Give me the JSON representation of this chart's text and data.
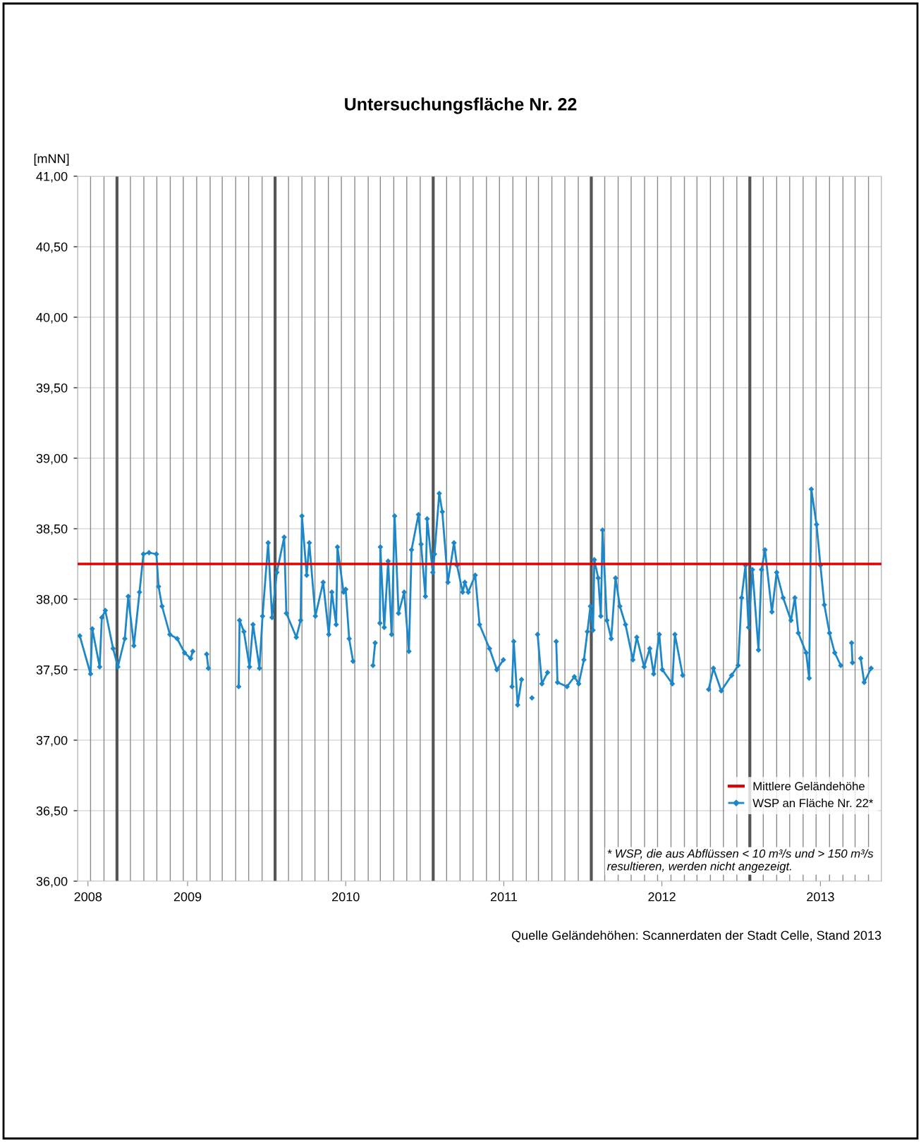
{
  "chart_data": {
    "type": "line",
    "title": "Untersuchungsfläche Nr. 22",
    "ylabel": "[mNN]",
    "annotations": [
      "* WSP, die aus Abflüssen < 10 m³/s und > 150 m³/s\nresultieren, werden nicht angezeigt.",
      "Quelle Geländehöhen: Scannerdaten der Stadt Celle, Stand 2013"
    ],
    "xlim": [
      "2008-04-22",
      "2013-05-22"
    ],
    "xticks": [
      {
        "value": "2008-05-16",
        "label": "2008"
      },
      {
        "value": "2009-01-01",
        "label": "2009"
      },
      {
        "value": "2010-01-01",
        "label": "2010"
      },
      {
        "value": "2011-01-01",
        "label": "2011"
      },
      {
        "value": "2012-01-01",
        "label": "2012"
      },
      {
        "value": "2013-01-01",
        "label": "2013"
      }
    ],
    "ylim": [
      36,
      41
    ],
    "yticks": [
      {
        "value": 36,
        "label": "36,00"
      },
      {
        "value": 36.5,
        "label": "36,50"
      },
      {
        "value": 37,
        "label": "37,00"
      },
      {
        "value": 37.5,
        "label": "37,50"
      },
      {
        "value": 38,
        "label": "38,00"
      },
      {
        "value": 38.5,
        "label": "38,50"
      },
      {
        "value": 39,
        "label": "39,00"
      },
      {
        "value": 39.5,
        "label": "39,50"
      },
      {
        "value": 40,
        "label": "40,00"
      },
      {
        "value": 40.5,
        "label": "40,50"
      },
      {
        "value": 41,
        "label": "41,00"
      }
    ],
    "grid": true,
    "legend": "bottom right",
    "marker": "diamond",
    "line_style": "solid",
    "ref_lines": [
      {
        "axis": "y",
        "value": 38.25,
        "label": "Mittlere Geländehöhe",
        "color": "#e00000"
      }
    ],
    "x": [
      "2008-04-27",
      "2008-05-22",
      "2008-05-26",
      "2008-06-12",
      "2008-06-17",
      "2008-06-25",
      "2008-07-13",
      "2008-07-24",
      "2008-08-09",
      "2008-08-17",
      "2008-08-30",
      "2008-09-12",
      "2008-09-21",
      "2008-10-04",
      "2008-10-21",
      "2008-10-26",
      "2008-11-03",
      "2008-11-21",
      "2008-12-08",
      "2008-12-25",
      "2009-01-08",
      "2009-01-13",
      "2009-01-30",
      "2009-02-14",
      "2009-02-18",
      "2009-03-20",
      "2009-04-29",
      "2009-05-01",
      "2009-05-11",
      "2009-05-24",
      "2009-06-01",
      "2009-06-16",
      "2009-06-23",
      "2009-07-06",
      "2009-07-15",
      "2009-07-26",
      "2009-08-12",
      "2009-08-17",
      "2009-09-09",
      "2009-09-19",
      "2009-09-22",
      "2009-10-03",
      "2009-10-09",
      "2009-10-23",
      "2009-11-10",
      "2009-11-23",
      "2009-11-30",
      "2009-12-10",
      "2009-12-13",
      "2009-12-27",
      "2010-01-01",
      "2010-01-09",
      "2010-01-18",
      "2010-02-10",
      "2010-03-05",
      "2010-03-10",
      "2010-03-15",
      "2010-03-21",
      "2010-03-22",
      "2010-03-31",
      "2010-04-09",
      "2010-04-17",
      "2010-04-24",
      "2010-05-03",
      "2010-05-16",
      "2010-05-27",
      "2010-06-02",
      "2010-06-18",
      "2010-06-24",
      "2010-07-04",
      "2010-07-08",
      "2010-07-21",
      "2010-07-25",
      "2010-08-05",
      "2010-08-12",
      "2010-08-25",
      "2010-09-08",
      "2010-09-15",
      "2010-09-28",
      "2010-10-03",
      "2010-10-11",
      "2010-10-27",
      "2010-11-06",
      "2010-11-29",
      "2010-12-16",
      "2010-12-31",
      "2011-01-10",
      "2011-01-20",
      "2011-01-24",
      "2011-02-02",
      "2011-02-11",
      "2011-02-25",
      "2011-03-07",
      "2011-03-14",
      "2011-03-20",
      "2011-03-30",
      "2011-04-12",
      "2011-04-22",
      "2011-05-02",
      "2011-05-05",
      "2011-05-27",
      "2011-06-13",
      "2011-06-23",
      "2011-07-05",
      "2011-07-13",
      "2011-07-20",
      "2011-07-26",
      "2011-07-29",
      "2011-08-07",
      "2011-08-13",
      "2011-08-17",
      "2011-08-27",
      "2011-09-06",
      "2011-09-16",
      "2011-09-26",
      "2011-10-09",
      "2011-10-26",
      "2011-11-04",
      "2011-11-21",
      "2011-12-04",
      "2011-12-13",
      "2011-12-26",
      "2012-01-02",
      "2012-01-25",
      "2012-01-31",
      "2012-02-18",
      "2012-03-15",
      "2012-04-18",
      "2012-04-29",
      "2012-05-17",
      "2012-06-10",
      "2012-06-25",
      "2012-07-03",
      "2012-07-12",
      "2012-07-19",
      "2012-07-28",
      "2012-08-11",
      "2012-08-18",
      "2012-08-26",
      "2012-09-11",
      "2012-09-22",
      "2012-10-07",
      "2012-10-25",
      "2012-11-03",
      "2012-11-11",
      "2012-11-29",
      "2012-12-06",
      "2012-12-11",
      "2012-12-23",
      "2013-01-01",
      "2013-01-10",
      "2013-01-22",
      "2013-02-03",
      "2013-02-17",
      "2013-03-01",
      "2013-03-14",
      "2013-03-16",
      "2013-03-25",
      "2013-04-04",
      "2013-04-12",
      "2013-04-28"
    ],
    "series": [
      {
        "name": "WSP an Fläche Nr. 22*",
        "color": "#1c87c9",
        "values": [
          37.74,
          37.47,
          37.79,
          37.52,
          37.87,
          37.92,
          37.65,
          37.52,
          37.72,
          38.02,
          37.67,
          38.05,
          38.32,
          38.33,
          38.32,
          38.09,
          37.95,
          37.75,
          37.72,
          37.62,
          37.58,
          37.63,
          null,
          37.61,
          37.51,
          null,
          37.38,
          37.85,
          37.77,
          37.52,
          37.82,
          37.51,
          37.88,
          38.4,
          37.87,
          38.19,
          38.44,
          37.9,
          37.73,
          37.85,
          38.59,
          38.17,
          38.4,
          37.88,
          38.12,
          37.75,
          38.05,
          37.82,
          38.37,
          38.05,
          38.07,
          37.72,
          37.56,
          null,
          37.53,
          37.69,
          null,
          37.83,
          38.37,
          37.8,
          38.27,
          37.75,
          38.59,
          37.9,
          38.05,
          37.63,
          38.35,
          38.6,
          38.39,
          38.02,
          38.57,
          38.19,
          38.32,
          38.75,
          38.62,
          38.12,
          38.4,
          38.24,
          38.05,
          38.12,
          38.05,
          38.17,
          37.82,
          37.65,
          37.5,
          37.57,
          null,
          37.38,
          37.7,
          37.25,
          37.43,
          null,
          37.3,
          null,
          37.75,
          37.4,
          37.48,
          null,
          37.7,
          37.41,
          37.38,
          37.45,
          37.4,
          37.57,
          37.77,
          37.95,
          37.78,
          38.28,
          38.15,
          37.88,
          38.49,
          37.85,
          37.72,
          38.15,
          37.95,
          37.82,
          37.57,
          37.73,
          37.52,
          37.65,
          37.47,
          37.75,
          37.5,
          37.4,
          37.75,
          37.46,
          null,
          37.36,
          37.51,
          37.35,
          37.46,
          37.53,
          38.01,
          38.24,
          37.8,
          38.21,
          37.64,
          38.21,
          38.35,
          37.91,
          38.19,
          38.01,
          37.85,
          38.01,
          37.76,
          37.62,
          37.44,
          38.78,
          38.53,
          38.24,
          37.96,
          37.76,
          37.62,
          37.53,
          null,
          37.69,
          37.55,
          null,
          37.58,
          37.41,
          37.51
        ]
      }
    ]
  }
}
